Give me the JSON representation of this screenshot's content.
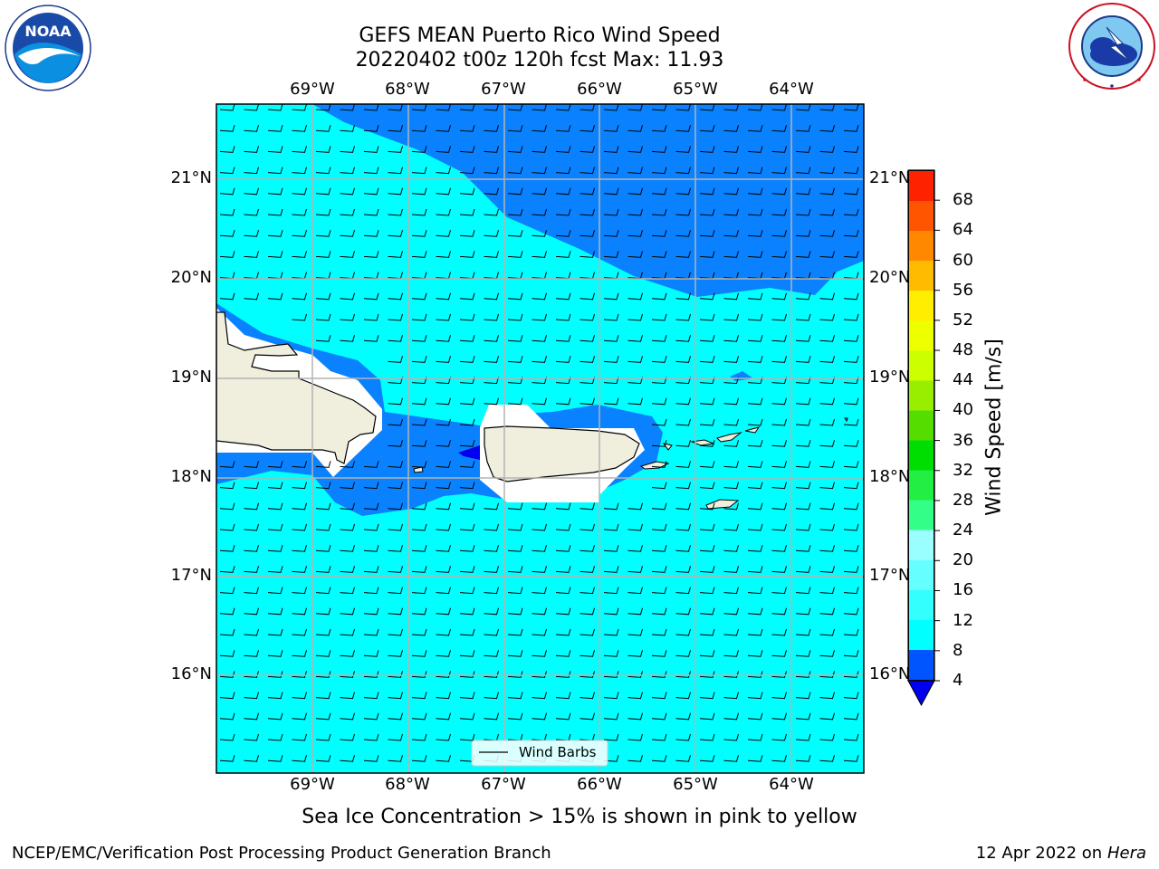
{
  "title_line1": "GEFS MEAN Puerto Rico Wind Speed",
  "title_line2": "20220402 t00z 120h fcst   Max: 11.93",
  "lon_labels": [
    "69°W",
    "68°W",
    "67°W",
    "66°W",
    "65°W",
    "64°W"
  ],
  "lat_labels": [
    "21°N",
    "20°N",
    "19°N",
    "18°N",
    "17°N",
    "16°N"
  ],
  "colorbar": {
    "label": "Wind Speed [m/s]",
    "ticks": [
      "4",
      "8",
      "12",
      "16",
      "20",
      "24",
      "28",
      "32",
      "36",
      "40",
      "44",
      "48",
      "52",
      "56",
      "60",
      "64",
      "68"
    ],
    "bands": [
      "#0055ff",
      "#00ffff",
      "#33ffff",
      "#66ffff",
      "#99ffff",
      "#33ff88",
      "#22ee44",
      "#00dd00",
      "#55dd00",
      "#99ee00",
      "#ccff00",
      "#eeff00",
      "#ffee00",
      "#ffbb00",
      "#ff8800",
      "#ff5500",
      "#ff2200"
    ],
    "under_color": "#0000ee"
  },
  "legend_label": "Wind Barbs",
  "subnote": "Sea Ice Concentration > 15% is shown in pink to yellow",
  "footer_left": "NCEP/EMC/Verification Post Processing Product Generation Branch",
  "footer_right_prefix": "12 Apr 2022 on ",
  "footer_right_host": "Hera",
  "colors": {
    "light_band": "#00ffff",
    "mid_band": "#0a82ff",
    "low_band": "#0000ee",
    "land": "#f0eedc",
    "grid": "#b4b4b4"
  }
}
